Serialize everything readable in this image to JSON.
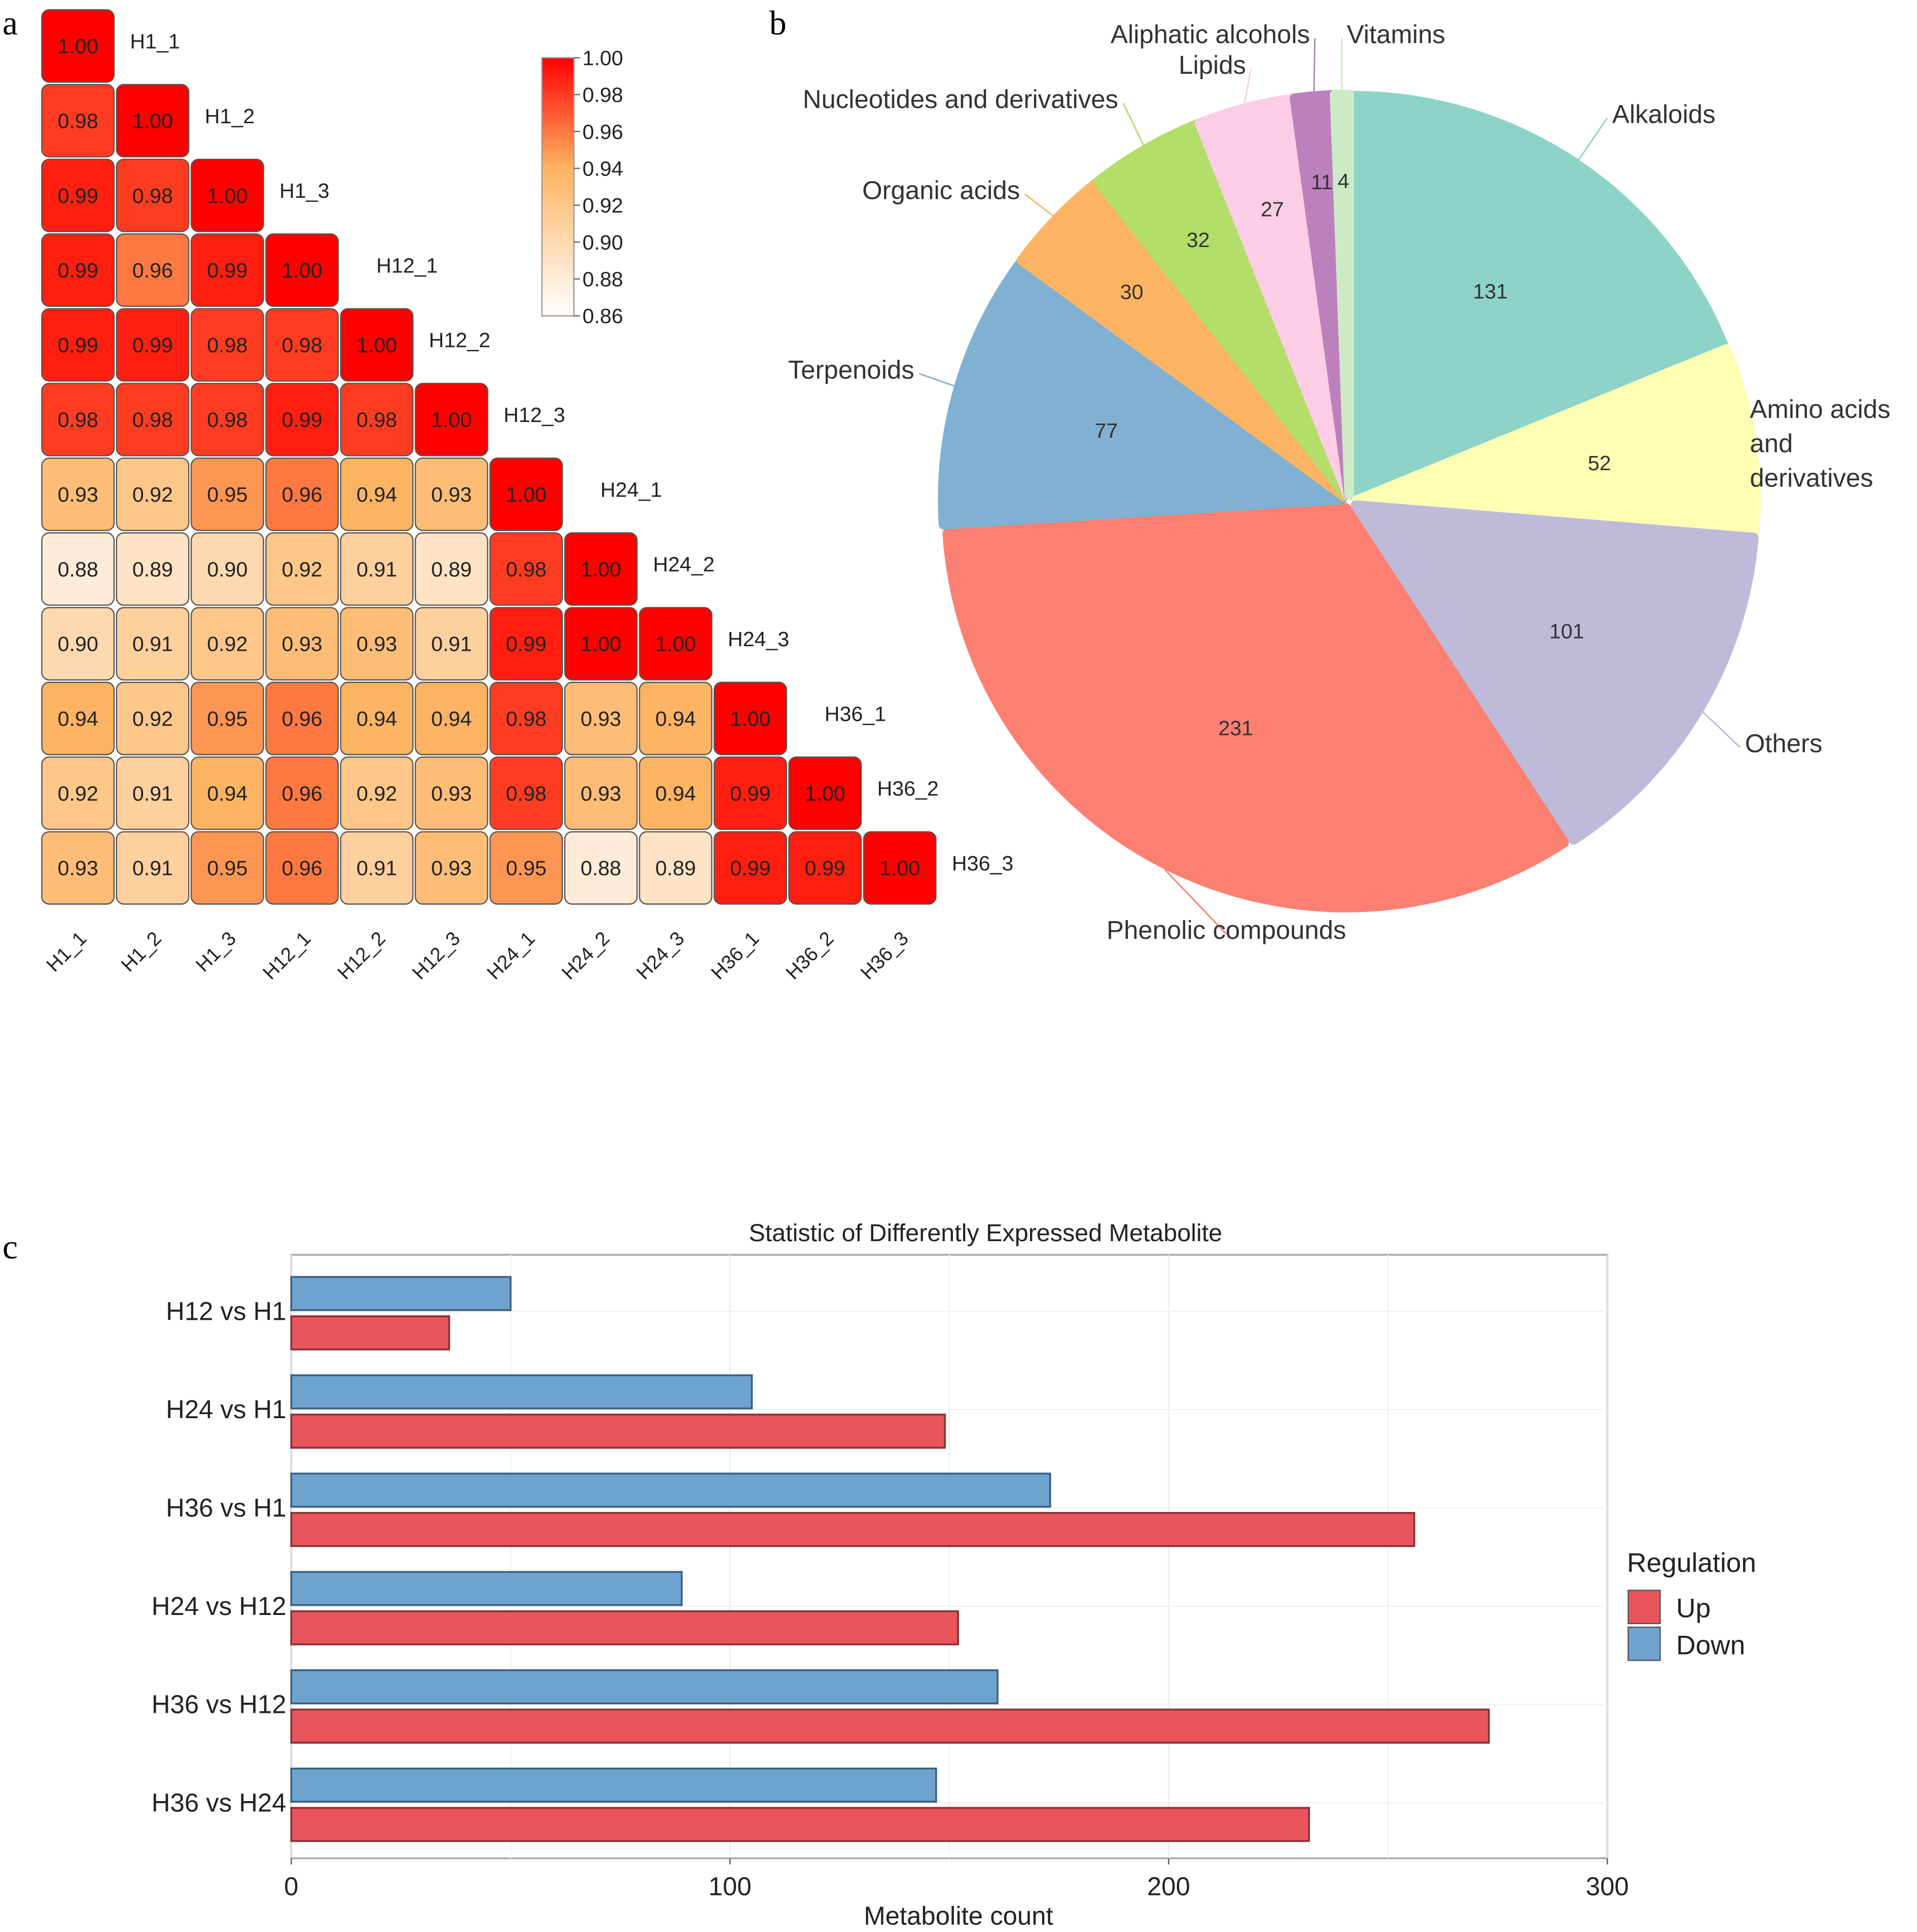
{
  "panel_labels": [
    "a",
    "b",
    "c"
  ],
  "chart_data": [
    {
      "type": "heatmap",
      "title": "",
      "samples": [
        "H1_1",
        "H1_2",
        "H1_3",
        "H12_1",
        "H12_2",
        "H12_3",
        "H24_1",
        "H24_2",
        "H24_3",
        "H36_1",
        "H36_2",
        "H36_3"
      ],
      "matrix_lower": [
        [
          1.0
        ],
        [
          0.98,
          1.0
        ],
        [
          0.99,
          0.98,
          1.0
        ],
        [
          0.99,
          0.96,
          0.99,
          1.0
        ],
        [
          0.99,
          0.99,
          0.98,
          0.98,
          1.0
        ],
        [
          0.98,
          0.98,
          0.98,
          0.99,
          0.98,
          1.0
        ],
        [
          0.93,
          0.92,
          0.95,
          0.96,
          0.94,
          0.93,
          1.0
        ],
        [
          0.88,
          0.89,
          0.9,
          0.92,
          0.91,
          0.89,
          0.98,
          1.0
        ],
        [
          0.9,
          0.91,
          0.92,
          0.93,
          0.93,
          0.91,
          0.99,
          1.0,
          1.0
        ],
        [
          0.94,
          0.92,
          0.95,
          0.96,
          0.94,
          0.94,
          0.98,
          0.93,
          0.94,
          1.0
        ],
        [
          0.92,
          0.91,
          0.94,
          0.96,
          0.92,
          0.93,
          0.98,
          0.93,
          0.94,
          0.99,
          1.0
        ],
        [
          0.93,
          0.91,
          0.95,
          0.96,
          0.91,
          0.93,
          0.95,
          0.88,
          0.89,
          0.99,
          0.99,
          1.0
        ]
      ],
      "colorbar": {
        "min": 0.86,
        "max": 1.0,
        "ticks": [
          "1.00",
          "0.98",
          "0.96",
          "0.94",
          "0.92",
          "0.90",
          "0.88",
          "0.86"
        ],
        "colors": [
          "#ffffff",
          "#fdb462",
          "#ff0000"
        ]
      }
    },
    {
      "type": "pie",
      "slices": [
        {
          "label": "Alkaloids",
          "value": 131,
          "color": "#8dd3c7"
        },
        {
          "label": "Amino acids and derivatives",
          "value": 52,
          "color": "#ffffb3"
        },
        {
          "label": "Others",
          "value": 101,
          "color": "#bebada"
        },
        {
          "label": "Phenolic compounds",
          "value": 231,
          "color": "#fb8072"
        },
        {
          "label": "Terpenoids",
          "value": 77,
          "color": "#80b1d3"
        },
        {
          "label": "Organic acids",
          "value": 30,
          "color": "#fdb462"
        },
        {
          "label": "Nucleotides and derivatives",
          "value": 32,
          "color": "#b3de69"
        },
        {
          "label": "Lipids",
          "value": 27,
          "color": "#fccde5"
        },
        {
          "label": "Aliphatic alcohols",
          "value": 11,
          "color": "#bc80bd"
        },
        {
          "label": "Vitamins",
          "value": 4,
          "color": "#ccebc5"
        }
      ]
    },
    {
      "type": "bar",
      "orientation": "horizontal",
      "title": "Statistic of Differently Expressed Metabolite",
      "xlabel": "Metabolite count",
      "ylabel": "",
      "xlim": [
        0,
        300
      ],
      "xticks": [
        0,
        100,
        200,
        300
      ],
      "categories": [
        "H12 vs H1",
        "H24 vs H1",
        "H36 vs H1",
        "H24 vs H12",
        "H36 vs H12",
        "H36 vs H24"
      ],
      "series": [
        {
          "name": "Up",
          "color": "#e8555b",
          "values": [
            36,
            149,
            256,
            152,
            273,
            232
          ]
        },
        {
          "name": "Down",
          "color": "#6fa3cf",
          "values": [
            50,
            105,
            173,
            89,
            161,
            147
          ]
        }
      ],
      "legend_title": "Regulation",
      "legend": "right",
      "grid": true
    }
  ]
}
